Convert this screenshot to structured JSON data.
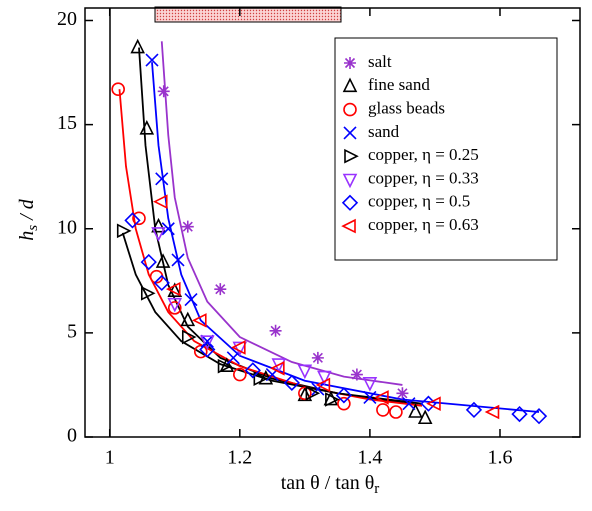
{
  "chart_data": {
    "type": "scatter",
    "xlabel": [
      "tan θ / tan θ",
      "r"
    ],
    "ylabel": [
      "h",
      "s",
      " / d"
    ],
    "xlim": [
      0.962,
      1.723
    ],
    "ylim": [
      0,
      20.6
    ],
    "xticks": [
      1,
      1.2,
      1.4,
      1.6
    ],
    "yticks": [
      0,
      5,
      10,
      15,
      20
    ],
    "legend": "upper right",
    "series": [
      {
        "name": "salt",
        "color": "#9933cc",
        "marker": "asterisk",
        "x": [
          1.083,
          1.12,
          1.17,
          1.255,
          1.32,
          1.38,
          1.45
        ],
        "values": [
          16.6,
          10.1,
          7.1,
          5.1,
          3.8,
          3.0,
          2.1
        ],
        "fit_x": [
          1.08,
          1.09,
          1.1,
          1.12,
          1.15,
          1.2,
          1.28,
          1.36,
          1.45
        ],
        "fit_y": [
          19,
          14.5,
          11.5,
          8.6,
          6.5,
          4.8,
          3.6,
          2.9,
          2.5
        ]
      },
      {
        "name": "fine sand",
        "color": "#000000",
        "marker": "triangle-up",
        "x": [
          1.043,
          1.057,
          1.075,
          1.082,
          1.1,
          1.12,
          1.18,
          1.24,
          1.3,
          1.34,
          1.47,
          1.485
        ],
        "values": [
          18.7,
          14.8,
          10.1,
          8.4,
          7.0,
          5.6,
          3.4,
          2.8,
          2.0,
          1.8,
          1.2,
          0.9
        ],
        "fit_x": [
          1.045,
          1.055,
          1.07,
          1.09,
          1.12,
          1.17,
          1.25,
          1.35,
          1.48
        ],
        "fit_y": [
          18.7,
          14,
          10,
          7.3,
          5.3,
          3.8,
          2.8,
          2.1,
          1.5
        ]
      },
      {
        "name": "glass beads",
        "color": "#ff0000",
        "marker": "circle",
        "x": [
          1.013,
          1.045,
          1.072,
          1.1,
          1.14,
          1.2,
          1.3,
          1.36,
          1.42,
          1.44
        ],
        "values": [
          16.7,
          10.5,
          7.7,
          6.2,
          4.1,
          3.0,
          2.1,
          1.6,
          1.3,
          1.2
        ],
        "fit_x": [
          1.015,
          1.025,
          1.04,
          1.06,
          1.09,
          1.13,
          1.2,
          1.3,
          1.4,
          1.48
        ],
        "fit_y": [
          16.7,
          13,
          10,
          7.8,
          6,
          4.6,
          3.4,
          2.4,
          1.8,
          1.5
        ]
      },
      {
        "name": "sand",
        "color": "#0000ff",
        "marker": "cross",
        "x": [
          1.065,
          1.08,
          1.09,
          1.105,
          1.125,
          1.15,
          1.19,
          1.25,
          1.32,
          1.4,
          1.46
        ],
        "values": [
          18.1,
          12.4,
          10.0,
          8.5,
          6.6,
          4.6,
          3.8,
          3.0,
          2.3,
          1.9,
          1.6
        ],
        "fit_x": [
          1.065,
          1.075,
          1.09,
          1.11,
          1.14,
          1.2,
          1.3,
          1.45,
          1.66
        ],
        "fit_y": [
          18,
          14,
          10.5,
          7.8,
          5.6,
          3.9,
          2.7,
          1.8,
          1.2
        ]
      },
      {
        "name": "copper, η = 0.25",
        "color": "#000000",
        "marker": "triangle-right",
        "x": [
          1.02,
          1.057,
          1.12,
          1.175,
          1.23,
          1.31,
          1.34
        ],
        "values": [
          9.9,
          6.9,
          4.8,
          3.4,
          2.8,
          2.1,
          1.8
        ],
        "fit_x": [
          1.02,
          1.04,
          1.07,
          1.11,
          1.17,
          1.25,
          1.35,
          1.48
        ],
        "fit_y": [
          9.8,
          7.8,
          6,
          4.6,
          3.5,
          2.7,
          2.1,
          1.6
        ]
      },
      {
        "name": "copper, η = 0.33",
        "color": "#9933ff",
        "marker": "triangle-down",
        "x": [
          1.075,
          1.1,
          1.15,
          1.2,
          1.26,
          1.3,
          1.33,
          1.4
        ],
        "values": [
          9.8,
          6.4,
          4.6,
          4.3,
          3.5,
          3.2,
          2.9,
          2.6
        ]
      },
      {
        "name": "copper, η = 0.5",
        "color": "#0000ff",
        "marker": "diamond",
        "x": [
          1.035,
          1.06,
          1.08,
          1.15,
          1.22,
          1.28,
          1.36,
          1.49,
          1.56,
          1.63,
          1.66
        ],
        "values": [
          10.4,
          8.4,
          7.4,
          4.2,
          3.2,
          2.6,
          2.0,
          1.6,
          1.3,
          1.1,
          1.0
        ]
      },
      {
        "name": "copper, η = 0.63",
        "color": "#ff0000",
        "marker": "triangle-left",
        "x": [
          1.08,
          1.1,
          1.14,
          1.2,
          1.26,
          1.33,
          1.42,
          1.5,
          1.59
        ],
        "values": [
          11.3,
          7.1,
          5.6,
          4.3,
          3.3,
          2.5,
          1.9,
          1.6,
          1.2
        ]
      }
    ]
  }
}
